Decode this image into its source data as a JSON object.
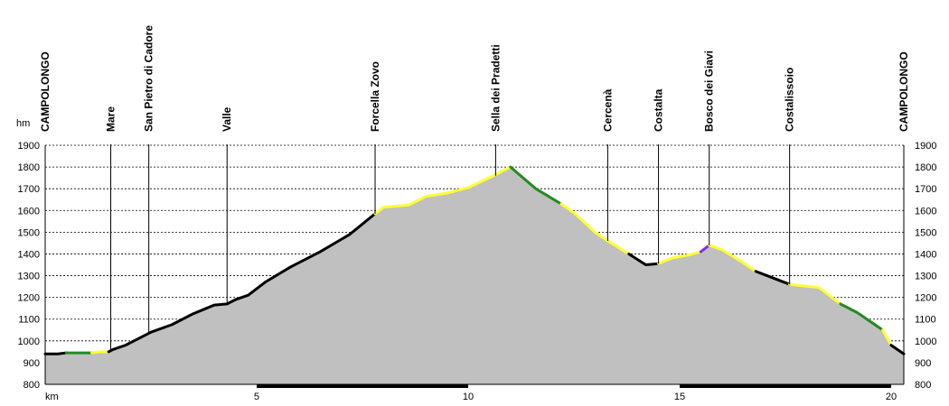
{
  "chart_data": {
    "type": "area",
    "title": "",
    "xlabel": "km",
    "ylabel": "hm",
    "xlim": [
      0,
      20.3
    ],
    "ylim": [
      800,
      1900
    ],
    "y_ticks": [
      800,
      900,
      1000,
      1100,
      1200,
      1300,
      1400,
      1500,
      1600,
      1700,
      1800,
      1900
    ],
    "x_ticks": [
      5,
      10,
      15,
      20
    ],
    "grid": true,
    "fill_color": "#c0c0c0",
    "segment_colors": {
      "black": "#000000",
      "yellow": "#ffff33",
      "green": "#228b22",
      "purple": "#8a2be2"
    },
    "profile": [
      [
        0.0,
        940
      ],
      [
        0.3,
        940
      ],
      [
        0.5,
        945
      ],
      [
        0.8,
        945
      ],
      [
        1.1,
        945
      ],
      [
        1.3,
        950
      ],
      [
        1.5,
        950
      ],
      [
        1.6,
        960
      ],
      [
        1.9,
        980
      ],
      [
        2.2,
        1010
      ],
      [
        2.5,
        1040
      ],
      [
        3.0,
        1075
      ],
      [
        3.5,
        1125
      ],
      [
        4.0,
        1165
      ],
      [
        4.3,
        1170
      ],
      [
        4.5,
        1190
      ],
      [
        4.8,
        1210
      ],
      [
        5.2,
        1270
      ],
      [
        5.8,
        1340
      ],
      [
        6.5,
        1410
      ],
      [
        7.2,
        1490
      ],
      [
        7.8,
        1585
      ],
      [
        8.0,
        1615
      ],
      [
        8.6,
        1625
      ],
      [
        9.0,
        1665
      ],
      [
        9.5,
        1680
      ],
      [
        10.0,
        1705
      ],
      [
        10.6,
        1760
      ],
      [
        11.0,
        1800
      ],
      [
        11.6,
        1700
      ],
      [
        12.2,
        1630
      ],
      [
        12.5,
        1590
      ],
      [
        13.0,
        1500
      ],
      [
        13.3,
        1460
      ],
      [
        13.8,
        1400
      ],
      [
        14.2,
        1350
      ],
      [
        14.5,
        1355
      ],
      [
        14.8,
        1380
      ],
      [
        15.2,
        1395
      ],
      [
        15.5,
        1410
      ],
      [
        15.7,
        1440
      ],
      [
        16.0,
        1420
      ],
      [
        16.5,
        1360
      ],
      [
        16.8,
        1320
      ],
      [
        17.2,
        1290
      ],
      [
        17.6,
        1260
      ],
      [
        18.3,
        1245
      ],
      [
        18.8,
        1170
      ],
      [
        19.2,
        1130
      ],
      [
        19.5,
        1090
      ],
      [
        19.8,
        1050
      ],
      [
        20.0,
        980
      ],
      [
        20.3,
        940
      ]
    ],
    "segments": [
      {
        "from": 0.0,
        "to": 0.5,
        "color": "black"
      },
      {
        "from": 0.5,
        "to": 1.1,
        "color": "green"
      },
      {
        "from": 1.1,
        "to": 1.5,
        "color": "yellow"
      },
      {
        "from": 1.5,
        "to": 7.8,
        "color": "black"
      },
      {
        "from": 7.8,
        "to": 11.0,
        "color": "yellow"
      },
      {
        "from": 11.0,
        "to": 12.2,
        "color": "green"
      },
      {
        "from": 12.2,
        "to": 13.8,
        "color": "yellow"
      },
      {
        "from": 13.8,
        "to": 14.5,
        "color": "black"
      },
      {
        "from": 14.5,
        "to": 15.5,
        "color": "yellow"
      },
      {
        "from": 15.5,
        "to": 15.7,
        "color": "purple"
      },
      {
        "from": 15.7,
        "to": 16.8,
        "color": "yellow"
      },
      {
        "from": 16.8,
        "to": 17.6,
        "color": "black"
      },
      {
        "from": 17.6,
        "to": 18.8,
        "color": "yellow"
      },
      {
        "from": 18.8,
        "to": 19.8,
        "color": "green"
      },
      {
        "from": 19.8,
        "to": 20.0,
        "color": "yellow"
      },
      {
        "from": 20.0,
        "to": 20.3,
        "color": "black"
      }
    ],
    "waypoints": [
      {
        "name": "CAMPOLONGO",
        "km": 0.0,
        "elev": 940
      },
      {
        "name": "Mare",
        "km": 1.55,
        "elev": 955
      },
      {
        "name": "San Pietro di Cadore",
        "km": 2.45,
        "elev": 1040
      },
      {
        "name": "Valle",
        "km": 4.3,
        "elev": 1170
      },
      {
        "name": "Forcella Zovo",
        "km": 7.8,
        "elev": 1585
      },
      {
        "name": "Sella dei Pradetti",
        "km": 10.65,
        "elev": 1760
      },
      {
        "name": "Cercenà",
        "km": 13.3,
        "elev": 1460
      },
      {
        "name": "Costalta",
        "km": 14.5,
        "elev": 1355
      },
      {
        "name": "Bosco dei Giavi",
        "km": 15.7,
        "elev": 1440
      },
      {
        "name": "Costalissoio",
        "km": 17.6,
        "elev": 1260
      },
      {
        "name": "CAMPOLONGO",
        "km": 20.3,
        "elev": 940
      }
    ],
    "scale_bar": [
      [
        5,
        10
      ],
      [
        15,
        20
      ]
    ]
  }
}
